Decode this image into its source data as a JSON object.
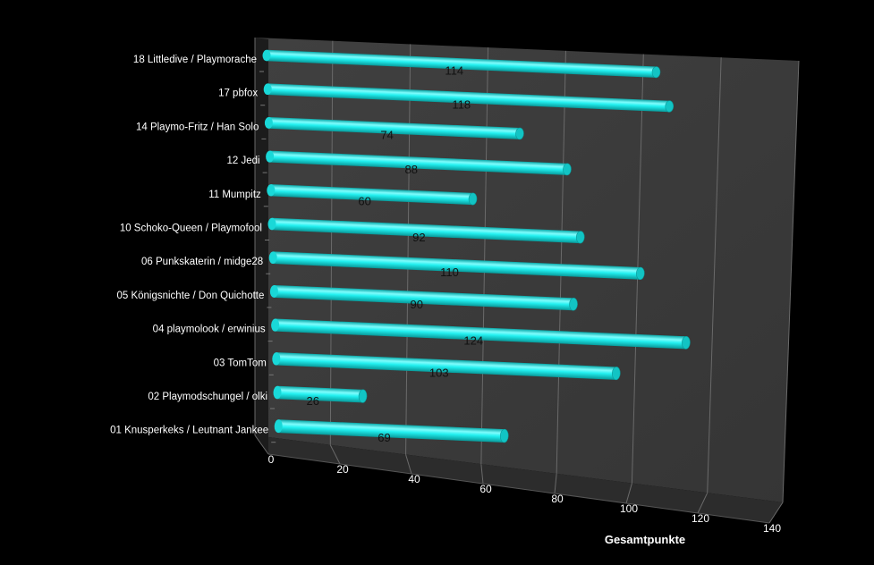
{
  "chart_data": {
    "type": "bar",
    "orientation": "horizontal",
    "title": "",
    "xlabel": "Gesamtpunkte",
    "ylabel": "",
    "xlim": [
      0,
      140
    ],
    "x_ticks": [
      0,
      20,
      40,
      60,
      80,
      100,
      120,
      140
    ],
    "grid": true,
    "three_d": true,
    "bar_color": "#22f0f0",
    "background_color": "#000000",
    "wall_color": "#3a3a3a",
    "categories": [
      "18 Littledive / Playmorache",
      "17 pbfox",
      "14 Playmo-Fritz / Han Solo",
      "12 Jedi",
      "11 Mumpitz",
      "10 Schoko-Queen / Playmofool",
      "06 Punkskaterin / midge28",
      "05 Königsnichte / Don Quichotte",
      "04 playmolook / erwinius",
      "03 TomTom",
      "02 Playmodschungel / olki",
      "01 Knusperkeks / Leutnant Jankee"
    ],
    "values": [
      114,
      118,
      74,
      88,
      60,
      92,
      110,
      90,
      124,
      103,
      26,
      69
    ]
  }
}
